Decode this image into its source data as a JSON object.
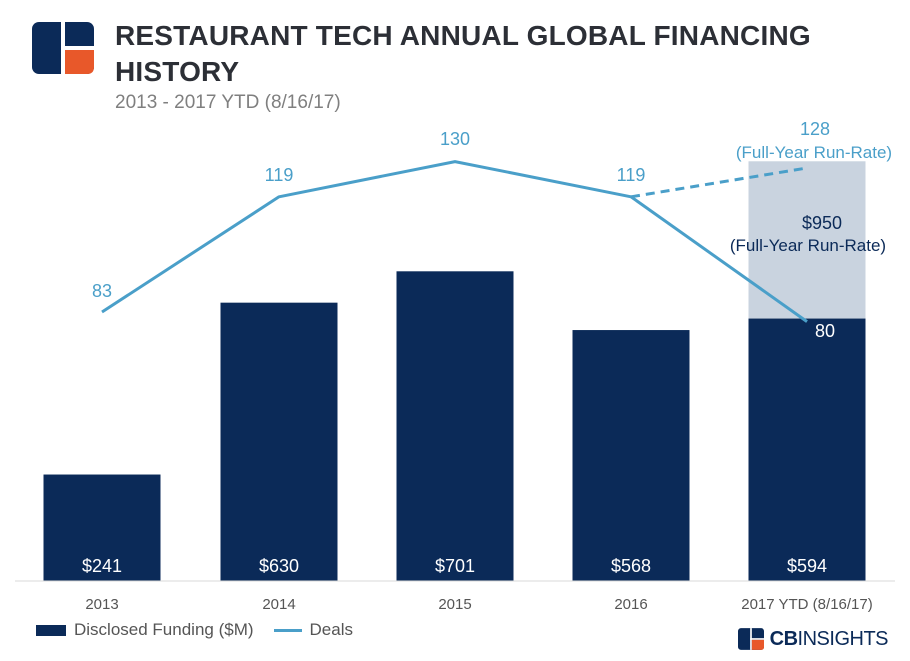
{
  "header": {
    "title": "RESTAURANT TECH ANNUAL GLOBAL FINANCING HISTORY",
    "subtitle": "2013 - 2017 YTD (8/16/17)"
  },
  "brand": {
    "prefix": "CB",
    "suffix": "INSIGHTS",
    "color": "#0b2a58",
    "accent": "#e8582a"
  },
  "chart_data": {
    "type": "bar",
    "categories": [
      "2013",
      "2014",
      "2015",
      "2016",
      "2017 YTD (8/16/17)"
    ],
    "series": [
      {
        "name": "Disclosed Funding ($M)",
        "type": "bar",
        "values": [
          241,
          630,
          701,
          568,
          594
        ],
        "labels": [
          "$241",
          "$630",
          "$701",
          "$568",
          "$594"
        ],
        "color": "#0b2a58"
      },
      {
        "name": "Deals",
        "type": "line",
        "values": [
          83,
          119,
          130,
          119,
          80
        ],
        "labels": [
          "83",
          "119",
          "130",
          "119",
          "80"
        ],
        "color": "#4a9fc9"
      }
    ],
    "projection": {
      "funding_value": 950,
      "funding_label": "$950",
      "funding_note": "(Full-Year Run-Rate)",
      "funding_color": "#c9d3df",
      "deals_value": 128,
      "deals_label": "128",
      "deals_note": "(Full-Year Run-Rate)"
    },
    "legend": [
      "Disclosed Funding ($M)",
      "Deals"
    ],
    "legend_position": "bottom-left",
    "grid": false
  }
}
